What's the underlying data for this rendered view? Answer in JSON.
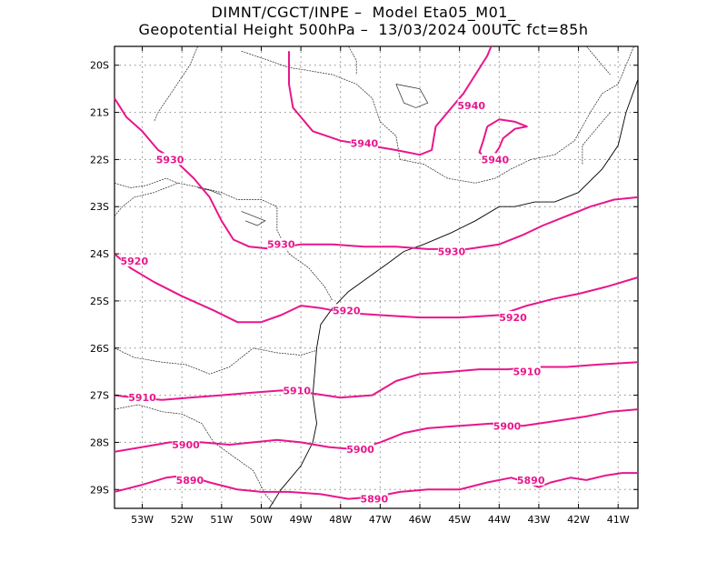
{
  "title": {
    "line1": "DIMNT/CGCT/INPE –  Model Eta05_M01_",
    "line2": "Geopotential Height 500hPa –  13/03/2024 00UTC fct=85h"
  },
  "colors": {
    "contour": "#e8168c",
    "coast": "#000000",
    "grid": "#888888"
  },
  "map": {
    "lon_range": [
      -53.7,
      -40.5
    ],
    "lat_range": [
      -29.4,
      -19.6
    ],
    "lon_ticks": [
      {
        "value": -53,
        "label": "53W"
      },
      {
        "value": -52,
        "label": "52W"
      },
      {
        "value": -51,
        "label": "51W"
      },
      {
        "value": -50,
        "label": "50W"
      },
      {
        "value": -49,
        "label": "49W"
      },
      {
        "value": -48,
        "label": "48W"
      },
      {
        "value": -47,
        "label": "47W"
      },
      {
        "value": -46,
        "label": "46W"
      },
      {
        "value": -45,
        "label": "45W"
      },
      {
        "value": -44,
        "label": "44W"
      },
      {
        "value": -43,
        "label": "43W"
      },
      {
        "value": -42,
        "label": "42W"
      },
      {
        "value": -41,
        "label": "41W"
      }
    ],
    "lat_ticks": [
      {
        "value": -20,
        "label": "20S"
      },
      {
        "value": -21,
        "label": "21S"
      },
      {
        "value": -22,
        "label": "22S"
      },
      {
        "value": -23,
        "label": "23S"
      },
      {
        "value": -24,
        "label": "24S"
      },
      {
        "value": -25,
        "label": "25S"
      },
      {
        "value": -26,
        "label": "26S"
      },
      {
        "value": -27,
        "label": "27S"
      },
      {
        "value": -28,
        "label": "28S"
      },
      {
        "value": -29,
        "label": "29S"
      }
    ],
    "contours": [
      {
        "label": "5940",
        "points": [
          [
            -49.3,
            -19.7
          ],
          [
            -49.3,
            -20.4
          ],
          [
            -49.2,
            -20.9
          ],
          [
            -48.7,
            -21.4
          ],
          [
            -48.0,
            -21.6
          ],
          [
            -47.3,
            -21.7
          ],
          [
            -46.6,
            -21.8
          ],
          [
            -46.0,
            -21.9
          ],
          [
            -45.7,
            -21.8
          ],
          [
            -45.6,
            -21.3
          ],
          [
            -45.2,
            -20.9
          ],
          [
            -44.9,
            -20.6
          ],
          [
            -44.6,
            -20.2
          ],
          [
            -44.3,
            -19.8
          ],
          [
            -44.2,
            -19.6
          ]
        ],
        "labels": [
          {
            "lon": -47.4,
            "lat": -21.65,
            "text": "5940"
          },
          {
            "lon": -44.7,
            "lat": -20.85,
            "text": "5940"
          }
        ]
      },
      {
        "label": "5940b",
        "points": [
          [
            -44.3,
            -21.3
          ],
          [
            -44.4,
            -21.6
          ],
          [
            -44.5,
            -21.85
          ],
          [
            -44.2,
            -22.0
          ],
          [
            -44.0,
            -21.75
          ],
          [
            -43.9,
            -21.55
          ],
          [
            -43.6,
            -21.35
          ],
          [
            -43.3,
            -21.3
          ],
          [
            -43.6,
            -21.2
          ],
          [
            -44.0,
            -21.15
          ],
          [
            -44.3,
            -21.3
          ]
        ],
        "labels": [
          {
            "lon": -44.1,
            "lat": -22.0,
            "text": "5940"
          }
        ]
      },
      {
        "label": "5930",
        "points": [
          [
            -53.7,
            -20.7
          ],
          [
            -53.4,
            -21.1
          ],
          [
            -53.0,
            -21.4
          ],
          [
            -52.6,
            -21.8
          ],
          [
            -52.2,
            -22.0
          ],
          [
            -51.7,
            -22.4
          ],
          [
            -51.3,
            -22.8
          ],
          [
            -51.0,
            -23.3
          ],
          [
            -50.7,
            -23.7
          ],
          [
            -50.3,
            -23.85
          ],
          [
            -49.7,
            -23.9
          ],
          [
            -49.0,
            -23.8
          ],
          [
            -48.2,
            -23.8
          ],
          [
            -47.4,
            -23.85
          ],
          [
            -46.6,
            -23.85
          ],
          [
            -45.8,
            -23.9
          ],
          [
            -44.8,
            -23.9
          ],
          [
            -44.0,
            -23.8
          ],
          [
            -43.4,
            -23.6
          ],
          [
            -42.9,
            -23.4
          ],
          [
            -42.3,
            -23.2
          ],
          [
            -41.7,
            -23.0
          ],
          [
            -41.1,
            -22.85
          ],
          [
            -40.5,
            -22.8
          ]
        ],
        "labels": [
          {
            "lon": -52.3,
            "lat": -22.0,
            "text": "5930"
          },
          {
            "lon": -49.5,
            "lat": -23.8,
            "text": "5930"
          },
          {
            "lon": -45.2,
            "lat": -23.95,
            "text": "5930"
          }
        ]
      },
      {
        "label": "5920",
        "points": [
          [
            -53.7,
            -24.0
          ],
          [
            -53.3,
            -24.3
          ],
          [
            -52.7,
            -24.6
          ],
          [
            -52.0,
            -24.9
          ],
          [
            -51.2,
            -25.2
          ],
          [
            -50.6,
            -25.45
          ],
          [
            -50.0,
            -25.45
          ],
          [
            -49.5,
            -25.3
          ],
          [
            -49.0,
            -25.1
          ],
          [
            -48.5,
            -25.15
          ],
          [
            -47.9,
            -25.25
          ],
          [
            -47.0,
            -25.3
          ],
          [
            -46.0,
            -25.35
          ],
          [
            -45.0,
            -25.35
          ],
          [
            -44.0,
            -25.3
          ],
          [
            -43.3,
            -25.1
          ],
          [
            -42.6,
            -24.95
          ],
          [
            -42.0,
            -24.85
          ],
          [
            -41.3,
            -24.7
          ],
          [
            -40.5,
            -24.5
          ]
        ],
        "labels": [
          {
            "lon": -53.2,
            "lat": -24.15,
            "text": "5920"
          },
          {
            "lon": -47.85,
            "lat": -25.2,
            "text": "5920"
          },
          {
            "lon": -43.65,
            "lat": -25.35,
            "text": "5920"
          }
        ]
      },
      {
        "label": "5910",
        "points": [
          [
            -53.7,
            -27.0
          ],
          [
            -53.2,
            -27.05
          ],
          [
            -52.5,
            -27.1
          ],
          [
            -51.8,
            -27.05
          ],
          [
            -51.0,
            -27.0
          ],
          [
            -50.3,
            -26.95
          ],
          [
            -49.5,
            -26.9
          ],
          [
            -48.8,
            -26.95
          ],
          [
            -48.0,
            -27.05
          ],
          [
            -47.2,
            -27.0
          ],
          [
            -46.6,
            -26.7
          ],
          [
            -46.0,
            -26.55
          ],
          [
            -45.2,
            -26.5
          ],
          [
            -44.5,
            -26.45
          ],
          [
            -43.8,
            -26.45
          ],
          [
            -43.0,
            -26.4
          ],
          [
            -42.3,
            -26.4
          ],
          [
            -41.5,
            -26.35
          ],
          [
            -40.5,
            -26.3
          ]
        ],
        "labels": [
          {
            "lon": -53.0,
            "lat": -27.05,
            "text": "5910"
          },
          {
            "lon": -49.1,
            "lat": -26.9,
            "text": "5910"
          },
          {
            "lon": -43.3,
            "lat": -26.5,
            "text": "5910"
          }
        ]
      },
      {
        "label": "5900",
        "points": [
          [
            -53.7,
            -28.2
          ],
          [
            -53.0,
            -28.1
          ],
          [
            -52.3,
            -28.0
          ],
          [
            -51.5,
            -28.0
          ],
          [
            -50.8,
            -28.05
          ],
          [
            -50.2,
            -28.0
          ],
          [
            -49.6,
            -27.95
          ],
          [
            -49.0,
            -28.0
          ],
          [
            -48.3,
            -28.1
          ],
          [
            -47.6,
            -28.15
          ],
          [
            -47.0,
            -28.0
          ],
          [
            -46.4,
            -27.8
          ],
          [
            -45.8,
            -27.7
          ],
          [
            -45.0,
            -27.65
          ],
          [
            -44.2,
            -27.6
          ],
          [
            -43.4,
            -27.65
          ],
          [
            -42.6,
            -27.55
          ],
          [
            -41.8,
            -27.45
          ],
          [
            -41.2,
            -27.35
          ],
          [
            -40.5,
            -27.3
          ]
        ],
        "labels": [
          {
            "lon": -51.9,
            "lat": -28.05,
            "text": "5900"
          },
          {
            "lon": -47.5,
            "lat": -28.15,
            "text": "5900"
          },
          {
            "lon": -43.8,
            "lat": -27.65,
            "text": "5900"
          }
        ]
      },
      {
        "label": "5890",
        "points": [
          [
            -53.7,
            -29.05
          ],
          [
            -53.0,
            -28.9
          ],
          [
            -52.4,
            -28.75
          ],
          [
            -51.9,
            -28.7
          ],
          [
            -51.3,
            -28.85
          ],
          [
            -50.6,
            -29.0
          ],
          [
            -50.0,
            -29.05
          ],
          [
            -49.3,
            -29.05
          ],
          [
            -48.5,
            -29.1
          ],
          [
            -47.8,
            -29.2
          ],
          [
            -47.1,
            -29.15
          ],
          [
            -46.5,
            -29.05
          ],
          [
            -45.8,
            -29.0
          ],
          [
            -45.0,
            -29.0
          ],
          [
            -44.3,
            -28.85
          ],
          [
            -43.7,
            -28.75
          ],
          [
            -43.3,
            -28.85
          ],
          [
            -43.0,
            -28.95
          ],
          [
            -42.7,
            -28.85
          ],
          [
            -42.2,
            -28.75
          ],
          [
            -41.8,
            -28.8
          ],
          [
            -41.3,
            -28.7
          ],
          [
            -40.9,
            -28.65
          ],
          [
            -40.5,
            -28.65
          ]
        ],
        "labels": [
          {
            "lon": -51.8,
            "lat": -28.8,
            "text": "5890"
          },
          {
            "lon": -47.15,
            "lat": -29.2,
            "text": "5890"
          },
          {
            "lon": -43.2,
            "lat": -28.8,
            "text": "5890"
          }
        ]
      }
    ],
    "coastline": [
      [
        -40.5,
        -20.3
      ],
      [
        -40.8,
        -21.0
      ],
      [
        -41.0,
        -21.7
      ],
      [
        -41.4,
        -22.2
      ],
      [
        -42.0,
        -22.7
      ],
      [
        -42.6,
        -22.9
      ],
      [
        -43.1,
        -22.9
      ],
      [
        -43.6,
        -23.0
      ],
      [
        -44.0,
        -23.0
      ],
      [
        -44.6,
        -23.3
      ],
      [
        -45.2,
        -23.55
      ],
      [
        -45.9,
        -23.8
      ],
      [
        -46.4,
        -23.95
      ],
      [
        -46.8,
        -24.2
      ],
      [
        -47.3,
        -24.5
      ],
      [
        -47.8,
        -24.8
      ],
      [
        -48.2,
        -25.15
      ],
      [
        -48.5,
        -25.5
      ],
      [
        -48.6,
        -26.0
      ],
      [
        -48.65,
        -26.5
      ],
      [
        -48.7,
        -27.0
      ],
      [
        -48.6,
        -27.6
      ],
      [
        -48.7,
        -28.0
      ],
      [
        -49.0,
        -28.5
      ],
      [
        -49.5,
        -29.0
      ],
      [
        -49.8,
        -29.4
      ]
    ],
    "borders": [
      [
        [
          -53.7,
          -22.5
        ],
        [
          -53.3,
          -22.6
        ],
        [
          -52.9,
          -22.55
        ],
        [
          -52.4,
          -22.4
        ],
        [
          -52.1,
          -22.5
        ]
      ],
      [
        [
          -53.7,
          -23.2
        ],
        [
          -53.5,
          -23.0
        ],
        [
          -53.2,
          -22.8
        ],
        [
          -52.7,
          -22.7
        ],
        [
          -52.1,
          -22.5
        ],
        [
          -51.5,
          -22.6
        ],
        [
          -51.0,
          -22.7
        ],
        [
          -50.6,
          -22.85
        ],
        [
          -50.0,
          -22.85
        ],
        [
          -49.6,
          -23.0
        ],
        [
          -49.6,
          -23.5
        ],
        [
          -49.3,
          -24.0
        ],
        [
          -48.8,
          -24.3
        ],
        [
          -48.4,
          -24.7
        ],
        [
          -48.2,
          -25.0
        ]
      ],
      [
        [
          -53.7,
          -26.0
        ],
        [
          -53.2,
          -26.2
        ],
        [
          -52.5,
          -26.3
        ],
        [
          -51.9,
          -26.35
        ],
        [
          -51.3,
          -26.55
        ],
        [
          -50.8,
          -26.4
        ],
        [
          -50.2,
          -26.0
        ],
        [
          -49.6,
          -26.1
        ],
        [
          -49.0,
          -26.15
        ],
        [
          -48.6,
          -26.05
        ]
      ],
      [
        [
          -53.7,
          -27.3
        ],
        [
          -53.1,
          -27.2
        ],
        [
          -52.5,
          -27.35
        ],
        [
          -52.0,
          -27.4
        ],
        [
          -51.5,
          -27.6
        ],
        [
          -51.2,
          -28.0
        ],
        [
          -50.7,
          -28.3
        ],
        [
          -50.2,
          -28.6
        ],
        [
          -49.9,
          -29.1
        ],
        [
          -49.7,
          -29.3
        ]
      ],
      [
        [
          -51.6,
          -19.6
        ],
        [
          -51.8,
          -20.0
        ],
        [
          -52.2,
          -20.5
        ],
        [
          -52.6,
          -21.0
        ],
        [
          -52.7,
          -21.2
        ]
      ],
      [
        [
          -50.5,
          -19.7
        ],
        [
          -49.8,
          -19.9
        ],
        [
          -49.3,
          -20.05
        ],
        [
          -48.9,
          -20.1
        ],
        [
          -48.2,
          -20.2
        ],
        [
          -47.6,
          -20.4
        ],
        [
          -47.2,
          -20.7
        ],
        [
          -47.0,
          -21.2
        ],
        [
          -46.6,
          -21.5
        ],
        [
          -46.5,
          -22.0
        ],
        [
          -45.9,
          -22.1
        ],
        [
          -45.3,
          -22.4
        ],
        [
          -44.6,
          -22.5
        ],
        [
          -44.1,
          -22.4
        ],
        [
          -43.7,
          -22.2
        ],
        [
          -43.2,
          -22.0
        ],
        [
          -42.6,
          -21.9
        ],
        [
          -42.1,
          -21.6
        ],
        [
          -41.7,
          -21.0
        ],
        [
          -41.4,
          -20.6
        ],
        [
          -41.0,
          -20.4
        ],
        [
          -40.8,
          -20.0
        ],
        [
          -40.6,
          -19.6
        ]
      ],
      [
        [
          -47.8,
          -19.6
        ],
        [
          -47.6,
          -19.9
        ],
        [
          -47.6,
          -20.2
        ]
      ],
      [
        [
          -41.8,
          -19.6
        ],
        [
          -41.5,
          -19.9
        ],
        [
          -41.2,
          -20.2
        ]
      ],
      [
        [
          -41.2,
          -21.0
        ],
        [
          -41.6,
          -21.4
        ],
        [
          -41.9,
          -21.7
        ],
        [
          -41.9,
          -22.1
        ]
      ]
    ],
    "lakes": [
      [
        [
          -46.6,
          -20.4
        ],
        [
          -46.3,
          -20.45
        ],
        [
          -46.0,
          -20.5
        ],
        [
          -45.8,
          -20.8
        ],
        [
          -46.1,
          -20.9
        ],
        [
          -46.4,
          -20.8
        ],
        [
          -46.6,
          -20.4
        ]
      ],
      [
        [
          -50.5,
          -23.1
        ],
        [
          -50.2,
          -23.2
        ],
        [
          -49.9,
          -23.3
        ],
        [
          -50.1,
          -23.4
        ],
        [
          -50.4,
          -23.3
        ]
      ],
      [
        [
          -51.6,
          -22.6
        ],
        [
          -51.3,
          -22.65
        ],
        [
          -51.0,
          -22.75
        ]
      ]
    ]
  }
}
